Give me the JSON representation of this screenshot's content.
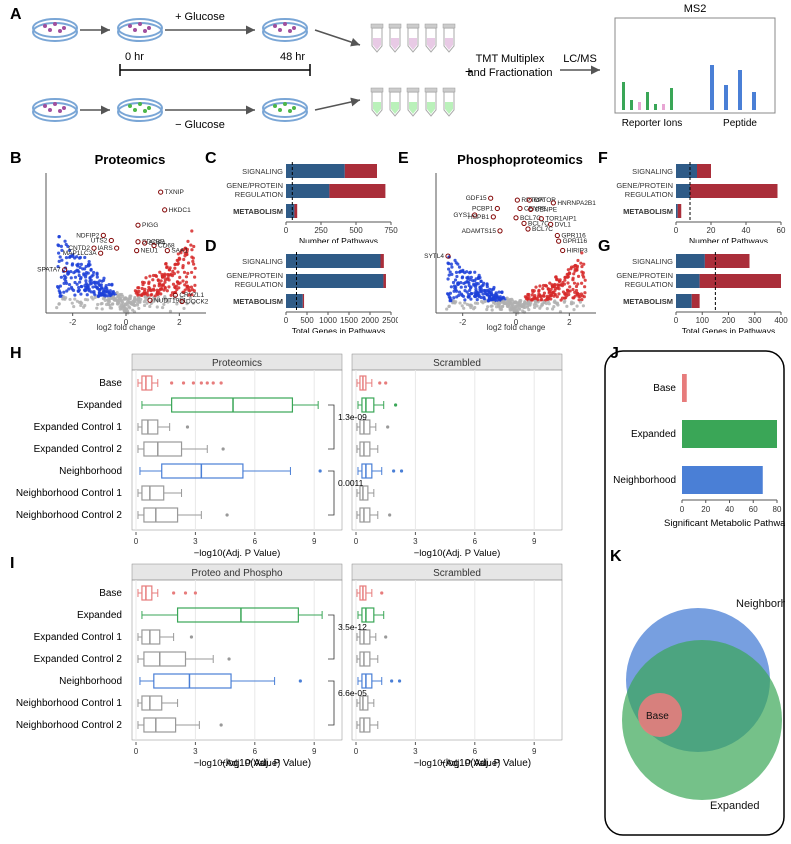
{
  "panelA": {
    "topLabel": "+ Glucose",
    "bottomLabel": "− Glucose",
    "timeStart": "0 hr",
    "timeEnd": "48 hr",
    "plus": "+",
    "tmtLabel": "TMT Multiplex\nand Fractionation",
    "lcms": "LC/MS",
    "ms2": "MS2",
    "reporterIons": "Reporter Ions",
    "peptide": "Peptide",
    "dishColor": "#7aa6d6",
    "purpleCell": "#a14f9e",
    "greenCell": "#4cb748",
    "ms2_heights": {
      "green": [
        28,
        10,
        18,
        6,
        22
      ],
      "pink": [
        8,
        6
      ],
      "blue": [
        45,
        25,
        40,
        18
      ]
    }
  },
  "panelB": {
    "title": "Proteomics",
    "ylabel": "−log10(Adj. P Value)",
    "xlabel": "log2 fold change",
    "xlim": [
      -3,
      3
    ],
    "ylim": [
      0,
      11
    ],
    "colors": {
      "neg": "#1c3fd8",
      "pos": "#d62828",
      "ns": "#b0b0b0",
      "highlight": "#800000"
    },
    "labels": [
      "TXNIP",
      "HKDC1",
      "PIGG",
      "NDFIP2",
      "UTS2",
      "SDCBP",
      "SDF4",
      "CD68",
      "CNTD2",
      "IARS",
      "NEU1",
      "SAA1",
      "MAP1LC3A",
      "SPATA7",
      "CRYZL1",
      "NUDT19L1",
      "DOCK2"
    ]
  },
  "bar_categories": [
    "SIGNALING",
    "GENE/PROTEIN\nREGULATION",
    "METABOLISM"
  ],
  "blue_bar": "#2f5b87",
  "red_bar": "#aa2e3a",
  "panelC": {
    "xlabel": "Number of Pathways",
    "xlim": [
      0,
      750
    ],
    "ticks": [
      0,
      250,
      500,
      750
    ],
    "data": [
      {
        "blue": 420,
        "red": 230
      },
      {
        "blue": 310,
        "red": 400
      },
      {
        "blue": 60,
        "red": 20
      }
    ],
    "dashX": 45
  },
  "panelD": {
    "xlabel": "Total Genes in Pathways",
    "xlim": [
      0,
      2500
    ],
    "ticks": [
      0,
      500,
      1000,
      1500,
      2000,
      2500
    ],
    "data": [
      {
        "blue": 2250,
        "red": 80
      },
      {
        "blue": 2320,
        "red": 60
      },
      {
        "blue": 400,
        "red": 30
      }
    ],
    "dashX": 250
  },
  "panelE": {
    "title": "Phosphoproteomics",
    "ylabel": "−log10(Adj. P Value)",
    "xlabel": "log2 fold change",
    "xlim": [
      -3,
      3
    ],
    "ylim": [
      0,
      15
    ],
    "labels": [
      "GDF15",
      "RPTOR",
      "RPTOR",
      "HNRNPA2B1",
      "PCBP1",
      "CENPE",
      "CENPE",
      "GYS1",
      "HSPB1",
      "BCL7C",
      "TOR1AIP1",
      "BCL7C",
      "DVL1",
      "GPR116",
      "ADAMTS15",
      "GPR116",
      "BCL7C",
      "SYTL4",
      "HIRIP3"
    ]
  },
  "panelF": {
    "xlabel": "Number of Pathways",
    "xlim": [
      0,
      60
    ],
    "ticks": [
      0,
      20,
      40,
      60
    ],
    "data": [
      {
        "blue": 12,
        "red": 8
      },
      {
        "blue": 8,
        "red": 50
      },
      {
        "blue": 1,
        "red": 2
      }
    ],
    "dashX": 8
  },
  "panelG": {
    "xlabel": "Total Genes in Pathways",
    "xlim": [
      0,
      400
    ],
    "ticks": [
      0,
      100,
      200,
      300,
      400
    ],
    "data": [
      {
        "blue": 110,
        "red": 170
      },
      {
        "blue": 90,
        "red": 310
      },
      {
        "blue": 60,
        "red": 30
      }
    ],
    "dashX": 150
  },
  "panelH": {
    "facets": [
      "Proteomics",
      "Scrambled"
    ],
    "yticks": [
      "Base",
      "Expanded",
      "Expanded Control 1",
      "Expanded Control 2",
      "Neighborhood",
      "Neighborhood Control 1",
      "Neighborhood Control 2"
    ],
    "xlabel": "−log10(Adj. P Value)",
    "xlim": [
      0,
      10
    ],
    "xticks": [
      0,
      3,
      6,
      9
    ],
    "pvals": [
      "1.3e-09",
      "0.0011"
    ],
    "colors": {
      "Base": "#e77c7c",
      "Expanded": "#3aa657",
      "Neighborhood": "#4a7fd6",
      "Control": "#999"
    },
    "boxes_main": [
      {
        "q1": 0.3,
        "med": 0.5,
        "q3": 0.8,
        "wl": 0.1,
        "wh": 1.1,
        "out": [
          1.8,
          2.4,
          2.9,
          3.3,
          3.6,
          3.9,
          4.3
        ]
      },
      {
        "q1": 1.8,
        "med": 4.9,
        "q3": 7.9,
        "wl": 0.3,
        "wh": 9.2,
        "out": []
      },
      {
        "q1": 0.3,
        "med": 0.6,
        "q3": 1.1,
        "wl": 0.1,
        "wh": 1.7,
        "out": [
          2.6
        ]
      },
      {
        "q1": 0.4,
        "med": 1.1,
        "q3": 2.3,
        "wl": 0.1,
        "wh": 3.6,
        "out": [
          4.4
        ]
      },
      {
        "q1": 1.3,
        "med": 3.3,
        "q3": 5.4,
        "wl": 0.2,
        "wh": 7.8,
        "out": [
          9.3
        ]
      },
      {
        "q1": 0.3,
        "med": 0.7,
        "q3": 1.4,
        "wl": 0.1,
        "wh": 2.3,
        "out": []
      },
      {
        "q1": 0.4,
        "med": 1.0,
        "q3": 2.1,
        "wl": 0.1,
        "wh": 3.3,
        "out": [
          4.6
        ]
      }
    ],
    "boxes_scr": [
      {
        "q1": 0.2,
        "med": 0.35,
        "q3": 0.5,
        "wl": 0.05,
        "wh": 0.8,
        "out": [
          1.2,
          1.5
        ]
      },
      {
        "q1": 0.3,
        "med": 0.5,
        "q3": 0.9,
        "wl": 0.1,
        "wh": 1.4,
        "out": [
          2.0
        ]
      },
      {
        "q1": 0.2,
        "med": 0.4,
        "q3": 0.7,
        "wl": 0.05,
        "wh": 1.0,
        "out": [
          1.6
        ]
      },
      {
        "q1": 0.2,
        "med": 0.4,
        "q3": 0.7,
        "wl": 0.05,
        "wh": 1.1,
        "out": []
      },
      {
        "q1": 0.3,
        "med": 0.5,
        "q3": 0.8,
        "wl": 0.1,
        "wh": 1.3,
        "out": [
          1.9,
          2.3
        ]
      },
      {
        "q1": 0.2,
        "med": 0.35,
        "q3": 0.6,
        "wl": 0.05,
        "wh": 0.9,
        "out": []
      },
      {
        "q1": 0.2,
        "med": 0.4,
        "q3": 0.7,
        "wl": 0.05,
        "wh": 1.1,
        "out": [
          1.7
        ]
      }
    ]
  },
  "panelI": {
    "facets": [
      "Proteo and Phospho",
      "Scrambled"
    ],
    "pvals": [
      "3.5e-12",
      "6.6e-05"
    ],
    "boxes_main": [
      {
        "q1": 0.3,
        "med": 0.5,
        "q3": 0.8,
        "wl": 0.1,
        "wh": 1.1,
        "out": [
          1.9,
          2.5,
          3.0
        ]
      },
      {
        "q1": 2.1,
        "med": 5.3,
        "q3": 8.2,
        "wl": 0.3,
        "wh": 9.4,
        "out": []
      },
      {
        "q1": 0.3,
        "med": 0.7,
        "q3": 1.2,
        "wl": 0.1,
        "wh": 1.9,
        "out": [
          2.8
        ]
      },
      {
        "q1": 0.4,
        "med": 1.2,
        "q3": 2.5,
        "wl": 0.1,
        "wh": 3.9,
        "out": [
          4.7
        ]
      },
      {
        "q1": 0.9,
        "med": 2.7,
        "q3": 4.8,
        "wl": 0.2,
        "wh": 7.0,
        "out": [
          8.3
        ]
      },
      {
        "q1": 0.3,
        "med": 0.7,
        "q3": 1.3,
        "wl": 0.1,
        "wh": 2.1,
        "out": []
      },
      {
        "q1": 0.4,
        "med": 1.0,
        "q3": 2.0,
        "wl": 0.1,
        "wh": 3.2,
        "out": [
          4.3
        ]
      }
    ],
    "boxes_scr": [
      {
        "q1": 0.2,
        "med": 0.35,
        "q3": 0.5,
        "wl": 0.05,
        "wh": 0.8,
        "out": [
          1.3
        ]
      },
      {
        "q1": 0.3,
        "med": 0.5,
        "q3": 0.9,
        "wl": 0.1,
        "wh": 1.4,
        "out": []
      },
      {
        "q1": 0.2,
        "med": 0.4,
        "q3": 0.7,
        "wl": 0.05,
        "wh": 1.0,
        "out": [
          1.5
        ]
      },
      {
        "q1": 0.2,
        "med": 0.4,
        "q3": 0.7,
        "wl": 0.05,
        "wh": 1.1,
        "out": []
      },
      {
        "q1": 0.3,
        "med": 0.5,
        "q3": 0.8,
        "wl": 0.1,
        "wh": 1.3,
        "out": [
          1.8,
          2.2
        ]
      },
      {
        "q1": 0.2,
        "med": 0.35,
        "q3": 0.6,
        "wl": 0.05,
        "wh": 0.9,
        "out": []
      },
      {
        "q1": 0.2,
        "med": 0.4,
        "q3": 0.7,
        "wl": 0.05,
        "wh": 1.1,
        "out": []
      }
    ]
  },
  "panelJ": {
    "xlabel": "Significant Metabolic Pathways",
    "xlim": [
      0,
      80
    ],
    "ticks": [
      0,
      20,
      40,
      60,
      80
    ],
    "cats": [
      "Base",
      "Expanded",
      "Neighborhood"
    ],
    "vals": [
      4,
      80,
      68
    ],
    "colors": [
      "#e77c7c",
      "#3aa657",
      "#4a7fd6"
    ]
  },
  "panelK": {
    "labels": [
      "Neighborhood",
      "Base",
      "Expanded"
    ],
    "colors": {
      "Neighborhood": "#4a7fd6",
      "Base": "#e77c7c",
      "Expanded": "#3aa657"
    }
  }
}
